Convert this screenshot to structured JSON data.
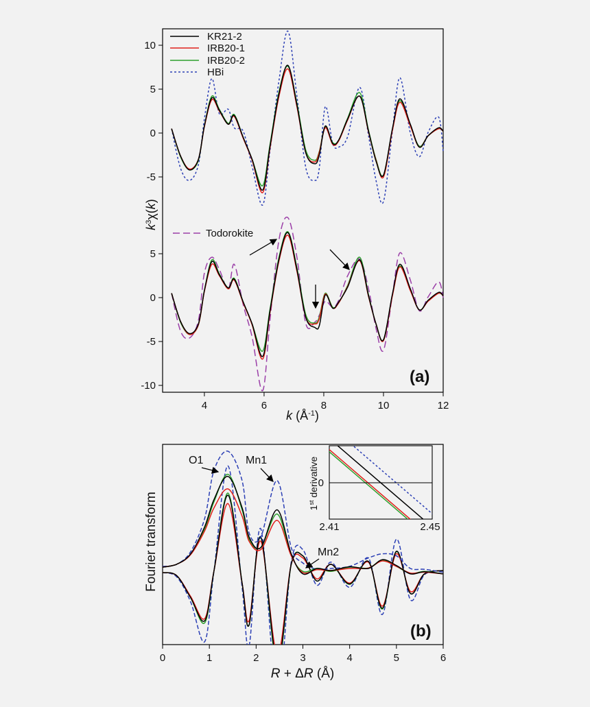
{
  "chart_data": [
    {
      "type": "line",
      "panel_label": "(a)",
      "ylabel_parts": [
        "k",
        "3",
        "χ(",
        "k",
        ")"
      ],
      "xlabel_parts": [
        "k",
        " (Å",
        "-1",
        ")"
      ],
      "xlim": [
        2.6,
        12
      ],
      "ylim": [
        -10.8,
        12
      ],
      "xticks": [
        "4",
        "6",
        "8",
        "10",
        "12"
      ],
      "yticks_upper": [
        "10",
        "5",
        "0",
        "-5"
      ],
      "yticks_lower": [
        "5",
        "0",
        "-5",
        "-10"
      ],
      "legend_upper": [
        {
          "name": "KR21-2",
          "color": "#000000",
          "dash": "solid"
        },
        {
          "name": "IRB20-1",
          "color": "#e0201a",
          "dash": "solid"
        },
        {
          "name": "IRB20-2",
          "color": "#2ca02c",
          "dash": "solid"
        },
        {
          "name": "HBi",
          "color": "#2b3fb5",
          "dash": "dotted"
        }
      ],
      "legend_lower": [
        {
          "name": "Todorokite",
          "color": "#9b3fa8",
          "dash": "dashed"
        }
      ],
      "x": [
        2.9,
        3.2,
        3.5,
        3.8,
        4.0,
        4.25,
        4.5,
        4.8,
        5.0,
        5.3,
        5.6,
        5.95,
        6.2,
        6.5,
        6.8,
        7.1,
        7.4,
        7.7,
        7.85,
        8.05,
        8.3,
        8.5,
        8.8,
        9.2,
        9.5,
        9.75,
        10.0,
        10.3,
        10.55,
        10.9,
        11.2,
        11.5,
        11.85,
        12.0
      ],
      "series_upper": [
        {
          "name": "KR21-2",
          "values": [
            0.5,
            -2.6,
            -4.2,
            -3.0,
            0.8,
            4.0,
            2.6,
            1.0,
            2.0,
            -0.5,
            -3.0,
            -6.5,
            -1.5,
            4.5,
            7.7,
            3.2,
            -2.3,
            -3.5,
            -2.5,
            0.8,
            -1.2,
            -0.8,
            1.6,
            4.2,
            0.2,
            -3.2,
            -4.8,
            0.5,
            3.9,
            1.0,
            -1.6,
            -0.3,
            0.6,
            0.2
          ]
        },
        {
          "name": "IRB20-1",
          "values": [
            0.5,
            -2.6,
            -4.1,
            -3.0,
            0.7,
            3.8,
            2.5,
            1.0,
            1.9,
            -0.6,
            -3.1,
            -6.8,
            -1.7,
            4.2,
            7.3,
            3.0,
            -2.3,
            -3.3,
            -2.2,
            0.6,
            -1.3,
            -0.9,
            1.5,
            4.2,
            0.1,
            -3.1,
            -5.0,
            0.3,
            3.5,
            0.8,
            -1.6,
            -0.3,
            0.5,
            0.2
          ]
        },
        {
          "name": "IRB20-2",
          "values": [
            0.5,
            -2.7,
            -4.2,
            -3.1,
            0.8,
            4.2,
            2.7,
            1.1,
            2.1,
            -0.5,
            -3.0,
            -6.0,
            -1.3,
            4.7,
            7.6,
            3.4,
            -2.0,
            -3.1,
            -2.1,
            0.7,
            -1.1,
            -0.8,
            1.7,
            4.6,
            0.3,
            -3.0,
            -4.8,
            0.4,
            3.7,
            0.9,
            -1.5,
            -0.3,
            0.5,
            0.2
          ]
        },
        {
          "name": "HBi",
          "values": [
            0.5,
            -4.0,
            -5.4,
            -3.6,
            1.6,
            6.2,
            2.2,
            2.7,
            0.6,
            0.2,
            -3.8,
            -8.2,
            -2.0,
            6.0,
            11.6,
            4.2,
            -4.0,
            -5.4,
            -4.0,
            3.0,
            -1.2,
            -1.6,
            -0.4,
            5.2,
            -0.3,
            -5.4,
            -7.8,
            0.2,
            6.3,
            0.0,
            -2.7,
            0.1,
            1.8,
            -2.1
          ]
        }
      ],
      "series_lower": [
        {
          "name": "KR21-2",
          "values": [
            0.5,
            -2.7,
            -4.1,
            -3.0,
            0.8,
            4.1,
            2.6,
            1.1,
            2.1,
            -0.5,
            -3.0,
            -6.7,
            -1.5,
            4.4,
            7.4,
            3.2,
            -2.3,
            -3.4,
            -3.2,
            0.3,
            -1.2,
            -0.5,
            1.2,
            4.3,
            0.2,
            -3.0,
            -4.8,
            0.4,
            3.8,
            1.0,
            -1.4,
            -0.3,
            0.6,
            0.2
          ]
        },
        {
          "name": "IRB20-1",
          "values": [
            0.5,
            -2.7,
            -4.2,
            -3.1,
            0.7,
            3.8,
            2.5,
            1.0,
            2.0,
            -0.6,
            -3.1,
            -7.0,
            -1.7,
            4.2,
            7.1,
            3.0,
            -2.3,
            -3.0,
            -2.4,
            0.4,
            -1.2,
            -0.6,
            1.3,
            4.2,
            0.1,
            -3.0,
            -4.9,
            0.2,
            3.5,
            0.8,
            -1.4,
            -0.4,
            0.5,
            0.2
          ]
        },
        {
          "name": "IRB20-2",
          "values": [
            0.5,
            -2.8,
            -4.2,
            -3.1,
            0.8,
            4.3,
            2.7,
            1.1,
            2.2,
            -0.5,
            -3.0,
            -6.1,
            -1.3,
            4.6,
            7.5,
            3.4,
            -2.0,
            -2.9,
            -2.2,
            0.5,
            -1.1,
            -0.6,
            1.4,
            4.6,
            0.3,
            -3.0,
            -4.8,
            0.3,
            3.6,
            0.9,
            -1.4,
            -0.3,
            0.5,
            0.2
          ]
        },
        {
          "name": "Todorokite",
          "values": [
            0.5,
            -3.8,
            -4.6,
            -2.6,
            2.8,
            4.6,
            3.2,
            1.0,
            3.8,
            -0.8,
            -4.5,
            -10.6,
            -2.5,
            6.6,
            9.1,
            4.6,
            -3.0,
            -2.8,
            -2.0,
            -0.4,
            -1.1,
            -0.3,
            2.5,
            4.4,
            1.0,
            -3.5,
            -6.0,
            0.3,
            5.1,
            2.0,
            -1.5,
            0.1,
            1.8,
            0.0
          ]
        }
      ],
      "annotations": [
        {
          "type": "arrow"
        },
        {
          "type": "arrow"
        },
        {
          "type": "arrow"
        }
      ]
    },
    {
      "type": "line",
      "panel_label": "(b)",
      "ylabel": "Fourier transform",
      "xlabel_parts": [
        "R",
        " + Δ",
        "R",
        " (Å)"
      ],
      "xlim": [
        0,
        6
      ],
      "xticks": [
        "0",
        "1",
        "2",
        "3",
        "4",
        "5",
        "6"
      ],
      "peak_labels": [
        "O1",
        "Mn1",
        "Mn2"
      ],
      "x": [
        0.0,
        0.3,
        0.6,
        0.9,
        1.1,
        1.4,
        1.7,
        1.85,
        2.1,
        2.45,
        2.75,
        3.0,
        3.3,
        3.6,
        4.0,
        4.4,
        4.7,
        5.0,
        5.3,
        5.6,
        6.0
      ],
      "magnitude": [
        {
          "name": "KR21-2",
          "values": [
            0.8,
            1.5,
            4.0,
            10.5,
            17.0,
            22.5,
            15.0,
            8.0,
            5.5,
            14.5,
            4.0,
            -0.8,
            0.5,
            0.0,
            0.9,
            0.5,
            2.6,
            1.2,
            -0.8,
            -0.3,
            -0.8
          ]
        },
        {
          "name": "IRB20-1",
          "values": [
            0.8,
            1.5,
            3.8,
            9.5,
            15.0,
            19.5,
            13.0,
            7.0,
            5.0,
            12.0,
            3.5,
            -0.5,
            0.2,
            0.0,
            0.5,
            0.6,
            2.3,
            1.0,
            -0.6,
            -0.4,
            -0.8
          ]
        },
        {
          "name": "IRB20-2",
          "values": [
            0.8,
            1.5,
            3.9,
            10.0,
            16.5,
            23.0,
            14.5,
            7.5,
            5.5,
            13.5,
            3.6,
            -0.2,
            0.5,
            -0.2,
            0.8,
            0.6,
            2.5,
            1.0,
            -0.7,
            -0.2,
            -0.8
          ]
        },
        {
          "name": "HBi",
          "values": [
            1.0,
            1.5,
            4.5,
            12.5,
            24.0,
            28.5,
            21.5,
            9.0,
            8.0,
            21.5,
            5.5,
            1.8,
            0.3,
            0.5,
            1.0,
            3.0,
            4.0,
            3.5,
            0.5,
            0.3,
            -0.4
          ]
        }
      ],
      "imaginary": [
        {
          "name": "KR21-2",
          "values": [
            -0.5,
            -1.2,
            -6.5,
            -12.0,
            0.0,
            18.0,
            -3.0,
            -13.0,
            8.0,
            -22.0,
            1.5,
            3.5,
            -2.5,
            1.5,
            -3.2,
            2.2,
            -9.0,
            4.6,
            -5.5,
            -0.8,
            0.0
          ]
        },
        {
          "name": "IRB20-1",
          "values": [
            -0.5,
            -1.2,
            -6.2,
            -11.5,
            0.0,
            16.0,
            -3.0,
            -12.0,
            7.0,
            -20.0,
            1.5,
            3.0,
            -2.0,
            1.5,
            -3.0,
            2.0,
            -8.5,
            4.0,
            -5.0,
            -0.8,
            0.0
          ]
        },
        {
          "name": "IRB20-2",
          "values": [
            -0.5,
            -1.2,
            -6.5,
            -12.5,
            0.0,
            18.5,
            -3.0,
            -13.0,
            8.0,
            -23.0,
            1.5,
            3.5,
            -2.5,
            1.5,
            -3.3,
            2.2,
            -9.2,
            4.5,
            -5.5,
            -0.8,
            0.0
          ]
        },
        {
          "name": "HBi",
          "values": [
            -0.5,
            -1.5,
            -7.5,
            -17.0,
            0.0,
            25.0,
            -4.0,
            -18.0,
            10.0,
            -30.0,
            2.0,
            5.0,
            -3.5,
            2.0,
            -4.0,
            3.0,
            -10.5,
            7.5,
            -7.0,
            -1.0,
            0.0
          ]
        }
      ],
      "ylim": [
        -17,
        30
      ],
      "inset": {
        "ylabel_parts": [
          "1",
          "st",
          " derivative"
        ],
        "y_tick": "0",
        "xticks": [
          "2.41",
          "2.45"
        ],
        "xlim": [
          2.41,
          2.45
        ],
        "zero_crossings": [
          {
            "name": "KR21-2",
            "x": 2.43
          },
          {
            "name": "IRB20-1",
            "x": 2.425
          },
          {
            "name": "IRB20-2",
            "x": 2.424
          },
          {
            "name": "HBi",
            "x": 2.436
          }
        ]
      }
    }
  ]
}
